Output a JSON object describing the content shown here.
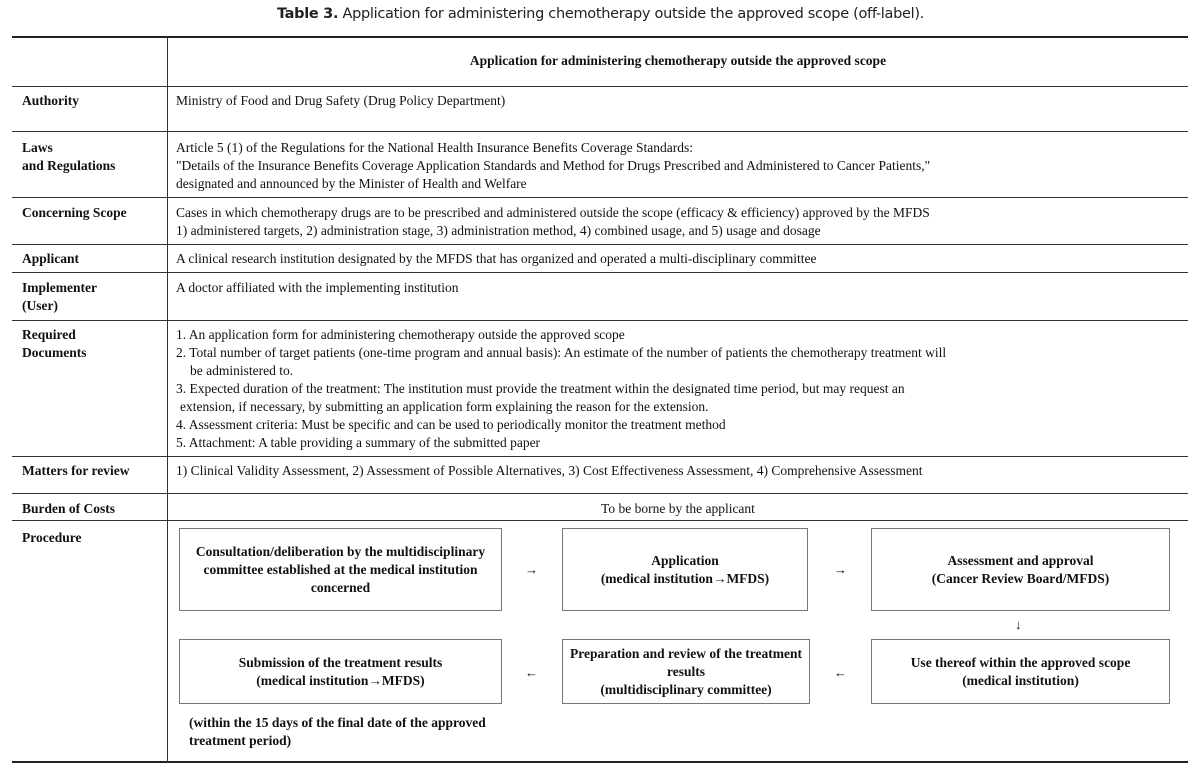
{
  "caption": {
    "label": "Table 3.",
    "text": " Application for administering chemotherapy outside the approved scope (off-label)."
  },
  "header": "Application for administering chemotherapy outside the approved scope",
  "rows": {
    "authority": {
      "label": "Authority",
      "value": "Ministry of Food and Drug Safety (Drug Policy Department)"
    },
    "laws": {
      "label1": "Laws",
      "label2": "and Regulations",
      "lines": [
        "Article 5 (1) of the Regulations for the National Health Insurance Benefits Coverage Standards:",
        "\"Details of the Insurance Benefits Coverage Application Standards and Method for Drugs Prescribed and Administered to Cancer Patients,\"",
        "designated and announced by the Minister of Health and Welfare"
      ]
    },
    "scope": {
      "label": "Concerning Scope",
      "lines": [
        "Cases in which chemotherapy drugs are to be prescribed and administered outside the scope (efficacy & efficiency) approved by the MFDS",
        "1) administered targets, 2) administration stage, 3) administration method, 4) combined usage, and 5) usage and dosage"
      ]
    },
    "applicant": {
      "label": "Applicant",
      "value": "A clinical research institution designated by the MFDS that has organized and operated a multi-disciplinary committee"
    },
    "implementer": {
      "label1": "Implementer",
      "label2": "(User)",
      "value": "A doctor affiliated with the implementing institution"
    },
    "documents": {
      "label1": "Required",
      "label2": "Documents",
      "lines": [
        "1. An application form for administering chemotherapy outside the approved scope",
        "2. Total number of target patients (one-time program and annual basis): An estimate of the number of patients the chemotherapy treatment will",
        "be administered to.",
        "3. Expected duration of the treatment: The institution must provide the treatment within the designated time period, but may request an",
        "extension, if necessary, by submitting an application form explaining the reason for the extension.",
        "4. Assessment criteria: Must be specific and can be used to periodically monitor the treatment method",
        "5. Attachment: A table providing a summary of the submitted paper"
      ]
    },
    "review": {
      "label": "Matters for review",
      "value": "1) Clinical Validity Assessment, 2) Assessment of Possible Alternatives, 3) Cost Effectiveness Assessment, 4) Comprehensive Assessment"
    },
    "costs": {
      "label": "Burden of Costs",
      "value": "To be borne by the applicant"
    },
    "procedure": {
      "label": "Procedure",
      "steps": [
        "Consultation/deliberation by the multidisciplinary committee established at the medical institution concerned",
        "Application\n(medical institution→MFDS)",
        "Assessment and approval\n(Cancer Review Board/MFDS)",
        "Use thereof within the approved scope\n(medical institution)",
        "Preparation and review of the treatment results\n(multidisciplinary committee)",
        "Submission of the treatment results\n(medical institution→MFDS)"
      ],
      "arrows": [
        "→",
        "→",
        "↓",
        "←",
        "←"
      ],
      "note": "(within the 15 days of the final date of the approved treatment period)"
    }
  }
}
